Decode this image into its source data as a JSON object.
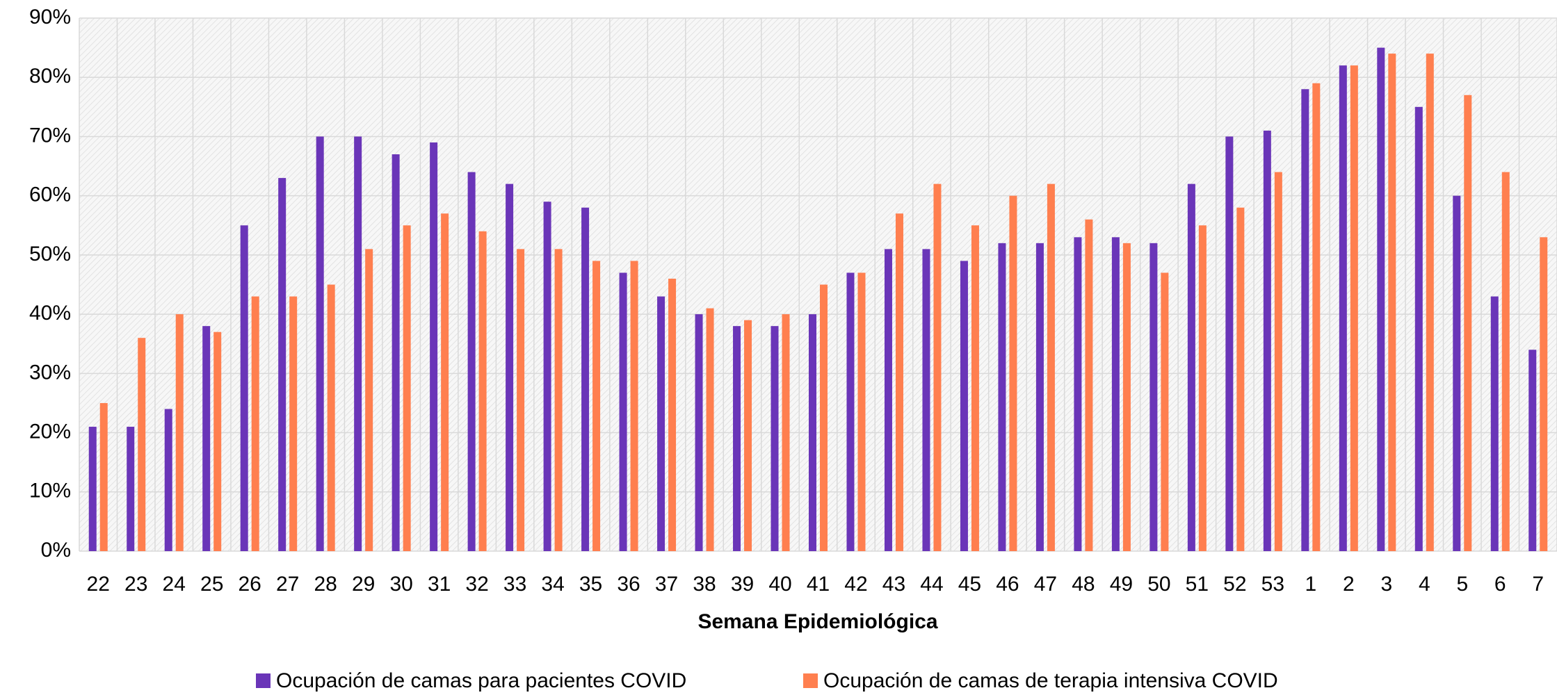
{
  "chart_data": {
    "type": "bar",
    "x_label": "Semana Epidemiológica",
    "categories": [
      "22",
      "23",
      "24",
      "25",
      "26",
      "27",
      "28",
      "29",
      "30",
      "31",
      "32",
      "33",
      "34",
      "35",
      "36",
      "37",
      "38",
      "39",
      "40",
      "41",
      "42",
      "43",
      "44",
      "45",
      "46",
      "47",
      "48",
      "49",
      "50",
      "51",
      "52",
      "53",
      "1",
      "2",
      "3",
      "4",
      "5",
      "6",
      "7"
    ],
    "series": [
      {
        "name": "Ocupación de camas para pacientes COVID",
        "color": "#6a35b8",
        "values": [
          21,
          21,
          24,
          38,
          55,
          63,
          70,
          70,
          67,
          69,
          64,
          62,
          59,
          58,
          47,
          43,
          40,
          38,
          38,
          40,
          47,
          51,
          51,
          49,
          52,
          52,
          53,
          53,
          52,
          62,
          70,
          71,
          78,
          82,
          85,
          75,
          60,
          43,
          34
        ]
      },
      {
        "name": "Ocupación de camas de terapia intensiva COVID",
        "color": "#ff7f4f",
        "values": [
          25,
          36,
          40,
          37,
          43,
          43,
          45,
          51,
          55,
          57,
          54,
          51,
          51,
          49,
          49,
          46,
          41,
          39,
          40,
          45,
          47,
          57,
          62,
          55,
          60,
          62,
          56,
          52,
          47,
          55,
          58,
          64,
          79,
          82,
          84,
          84,
          77,
          64,
          53
        ]
      }
    ],
    "ylim": [
      0,
      90
    ],
    "yticks": [
      {
        "value": 0,
        "label": "0%"
      },
      {
        "value": 10,
        "label": "10%"
      },
      {
        "value": 20,
        "label": "20%"
      },
      {
        "value": 30,
        "label": "30%"
      },
      {
        "value": 40,
        "label": "40%"
      },
      {
        "value": 50,
        "label": "50%"
      },
      {
        "value": 60,
        "label": "60%"
      },
      {
        "value": 70,
        "label": "70%"
      },
      {
        "value": 80,
        "label": "80%"
      },
      {
        "value": 90,
        "label": "90%"
      }
    ],
    "grid": true
  }
}
